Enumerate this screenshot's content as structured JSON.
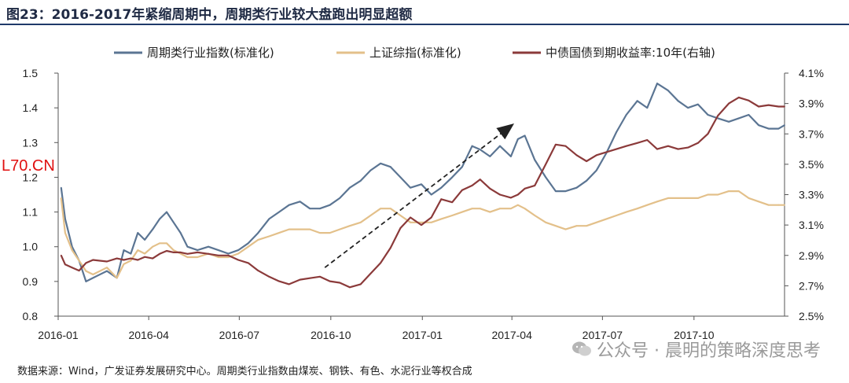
{
  "figure": {
    "title": "图23：2016-2017年紧缩周期中，周期类行业较大盘跑出明显超额",
    "source": "数据来源：Wind，广发证券发展研究中心。周期类行业指数由煤炭、钢铁、有色、水泥行业等权合成",
    "watermark": "公众号 · 晨明的策略深度思考",
    "corner_logo": "L70.CN",
    "wechat_icon": "wechat-icon"
  },
  "chart_data": {
    "type": "line",
    "x_tick_labels": [
      "2016-01",
      "2016-04",
      "2016-07",
      "2016-10",
      "2017-01",
      "2017-04",
      "2017-07",
      "2017-10"
    ],
    "x_range": [
      "2016-01",
      "2017-12-31"
    ],
    "y_left": {
      "ticks": [
        "0.8",
        "0.9",
        "1.0",
        "1.1",
        "1.2",
        "1.3",
        "1.4",
        "1.5"
      ],
      "lim": [
        0.8,
        1.5
      ]
    },
    "y_right": {
      "ticks": [
        "2.5%",
        "2.7%",
        "2.9%",
        "3.1%",
        "3.3%",
        "3.5%",
        "3.7%",
        "3.9%",
        "4.1%"
      ],
      "lim": [
        2.5,
        4.1
      ]
    },
    "grid": false,
    "legend_position": "top",
    "annotation": "dashed arrow from 2016-10 to 2017-04 showing upward trend",
    "series": [
      {
        "name": "周期类行业指数(标准化)",
        "axis": "left",
        "color": "#5b7593",
        "points": [
          [
            "2016-01-04",
            1.17
          ],
          [
            "2016-01-08",
            1.08
          ],
          [
            "2016-01-15",
            1.0
          ],
          [
            "2016-01-22",
            0.96
          ],
          [
            "2016-01-29",
            0.9
          ],
          [
            "2016-02-05",
            0.91
          ],
          [
            "2016-02-19",
            0.93
          ],
          [
            "2016-02-29",
            0.91
          ],
          [
            "2016-03-07",
            0.99
          ],
          [
            "2016-03-14",
            0.98
          ],
          [
            "2016-03-21",
            1.04
          ],
          [
            "2016-03-28",
            1.02
          ],
          [
            "2016-04-05",
            1.05
          ],
          [
            "2016-04-12",
            1.08
          ],
          [
            "2016-04-19",
            1.1
          ],
          [
            "2016-04-26",
            1.07
          ],
          [
            "2016-05-03",
            1.04
          ],
          [
            "2016-05-10",
            1.0
          ],
          [
            "2016-05-20",
            0.99
          ],
          [
            "2016-05-31",
            1.0
          ],
          [
            "2016-06-10",
            0.99
          ],
          [
            "2016-06-20",
            0.98
          ],
          [
            "2016-06-30",
            0.99
          ],
          [
            "2016-07-10",
            1.01
          ],
          [
            "2016-07-20",
            1.04
          ],
          [
            "2016-07-31",
            1.08
          ],
          [
            "2016-08-10",
            1.1
          ],
          [
            "2016-08-20",
            1.12
          ],
          [
            "2016-08-31",
            1.13
          ],
          [
            "2016-09-10",
            1.11
          ],
          [
            "2016-09-20",
            1.11
          ],
          [
            "2016-09-30",
            1.12
          ],
          [
            "2016-10-10",
            1.14
          ],
          [
            "2016-10-20",
            1.17
          ],
          [
            "2016-10-31",
            1.19
          ],
          [
            "2016-11-10",
            1.22
          ],
          [
            "2016-11-20",
            1.24
          ],
          [
            "2016-11-30",
            1.23
          ],
          [
            "2016-12-10",
            1.2
          ],
          [
            "2016-12-20",
            1.17
          ],
          [
            "2016-12-31",
            1.18
          ],
          [
            "2017-01-10",
            1.15
          ],
          [
            "2017-01-20",
            1.17
          ],
          [
            "2017-01-31",
            1.2
          ],
          [
            "2017-02-10",
            1.23
          ],
          [
            "2017-02-20",
            1.29
          ],
          [
            "2017-02-28",
            1.28
          ],
          [
            "2017-03-10",
            1.26
          ],
          [
            "2017-03-20",
            1.29
          ],
          [
            "2017-03-31",
            1.26
          ],
          [
            "2017-04-07",
            1.31
          ],
          [
            "2017-04-14",
            1.32
          ],
          [
            "2017-04-24",
            1.25
          ],
          [
            "2017-05-05",
            1.2
          ],
          [
            "2017-05-15",
            1.16
          ],
          [
            "2017-05-25",
            1.16
          ],
          [
            "2017-06-05",
            1.17
          ],
          [
            "2017-06-15",
            1.19
          ],
          [
            "2017-06-25",
            1.22
          ],
          [
            "2017-07-05",
            1.27
          ],
          [
            "2017-07-15",
            1.33
          ],
          [
            "2017-07-25",
            1.38
          ],
          [
            "2017-08-05",
            1.42
          ],
          [
            "2017-08-15",
            1.4
          ],
          [
            "2017-08-25",
            1.47
          ],
          [
            "2017-09-05",
            1.45
          ],
          [
            "2017-09-15",
            1.42
          ],
          [
            "2017-09-25",
            1.4
          ],
          [
            "2017-10-05",
            1.41
          ],
          [
            "2017-10-15",
            1.38
          ],
          [
            "2017-10-25",
            1.37
          ],
          [
            "2017-11-05",
            1.36
          ],
          [
            "2017-11-15",
            1.37
          ],
          [
            "2017-11-25",
            1.38
          ],
          [
            "2017-12-05",
            1.35
          ],
          [
            "2017-12-15",
            1.34
          ],
          [
            "2017-12-25",
            1.34
          ],
          [
            "2017-12-31",
            1.35
          ]
        ]
      },
      {
        "name": "上证综指(标准化)",
        "axis": "left",
        "color": "#e3c08a",
        "points": [
          [
            "2016-01-04",
            1.14
          ],
          [
            "2016-01-08",
            1.04
          ],
          [
            "2016-01-15",
            0.99
          ],
          [
            "2016-01-22",
            0.96
          ],
          [
            "2016-01-29",
            0.93
          ],
          [
            "2016-02-05",
            0.92
          ],
          [
            "2016-02-19",
            0.94
          ],
          [
            "2016-02-29",
            0.91
          ],
          [
            "2016-03-07",
            0.95
          ],
          [
            "2016-03-14",
            0.96
          ],
          [
            "2016-03-21",
            0.99
          ],
          [
            "2016-03-28",
            0.98
          ],
          [
            "2016-04-05",
            1.0
          ],
          [
            "2016-04-12",
            1.01
          ],
          [
            "2016-04-19",
            1.01
          ],
          [
            "2016-04-26",
            0.99
          ],
          [
            "2016-05-03",
            0.98
          ],
          [
            "2016-05-10",
            0.97
          ],
          [
            "2016-05-20",
            0.97
          ],
          [
            "2016-05-31",
            0.98
          ],
          [
            "2016-06-10",
            0.97
          ],
          [
            "2016-06-20",
            0.97
          ],
          [
            "2016-06-30",
            0.98
          ],
          [
            "2016-07-10",
            1.0
          ],
          [
            "2016-07-20",
            1.02
          ],
          [
            "2016-07-31",
            1.03
          ],
          [
            "2016-08-10",
            1.04
          ],
          [
            "2016-08-20",
            1.05
          ],
          [
            "2016-08-31",
            1.05
          ],
          [
            "2016-09-10",
            1.05
          ],
          [
            "2016-09-20",
            1.04
          ],
          [
            "2016-09-30",
            1.04
          ],
          [
            "2016-10-10",
            1.05
          ],
          [
            "2016-10-20",
            1.06
          ],
          [
            "2016-10-31",
            1.07
          ],
          [
            "2016-11-10",
            1.09
          ],
          [
            "2016-11-20",
            1.11
          ],
          [
            "2016-11-30",
            1.11
          ],
          [
            "2016-12-10",
            1.09
          ],
          [
            "2016-12-20",
            1.07
          ],
          [
            "2016-12-31",
            1.07
          ],
          [
            "2017-01-10",
            1.07
          ],
          [
            "2017-01-20",
            1.08
          ],
          [
            "2017-01-31",
            1.09
          ],
          [
            "2017-02-10",
            1.1
          ],
          [
            "2017-02-20",
            1.11
          ],
          [
            "2017-02-28",
            1.11
          ],
          [
            "2017-03-10",
            1.1
          ],
          [
            "2017-03-20",
            1.11
          ],
          [
            "2017-03-31",
            1.11
          ],
          [
            "2017-04-07",
            1.12
          ],
          [
            "2017-04-14",
            1.11
          ],
          [
            "2017-04-24",
            1.09
          ],
          [
            "2017-05-05",
            1.07
          ],
          [
            "2017-05-15",
            1.06
          ],
          [
            "2017-05-25",
            1.05
          ],
          [
            "2017-06-05",
            1.06
          ],
          [
            "2017-06-15",
            1.06
          ],
          [
            "2017-06-25",
            1.07
          ],
          [
            "2017-07-05",
            1.08
          ],
          [
            "2017-07-15",
            1.09
          ],
          [
            "2017-07-25",
            1.1
          ],
          [
            "2017-08-05",
            1.11
          ],
          [
            "2017-08-15",
            1.12
          ],
          [
            "2017-08-25",
            1.13
          ],
          [
            "2017-09-05",
            1.14
          ],
          [
            "2017-09-15",
            1.14
          ],
          [
            "2017-09-25",
            1.14
          ],
          [
            "2017-10-05",
            1.14
          ],
          [
            "2017-10-15",
            1.15
          ],
          [
            "2017-10-25",
            1.15
          ],
          [
            "2017-11-05",
            1.16
          ],
          [
            "2017-11-15",
            1.16
          ],
          [
            "2017-11-25",
            1.14
          ],
          [
            "2017-12-05",
            1.13
          ],
          [
            "2017-12-15",
            1.12
          ],
          [
            "2017-12-25",
            1.12
          ],
          [
            "2017-12-31",
            1.12
          ]
        ]
      },
      {
        "name": "中债国债到期收益率:10年(右轴)",
        "axis": "right",
        "color": "#8b3a3a",
        "points": [
          [
            "2016-01-04",
            2.9
          ],
          [
            "2016-01-08",
            2.84
          ],
          [
            "2016-01-15",
            2.82
          ],
          [
            "2016-01-22",
            2.8
          ],
          [
            "2016-01-29",
            2.85
          ],
          [
            "2016-02-05",
            2.87
          ],
          [
            "2016-02-19",
            2.86
          ],
          [
            "2016-02-29",
            2.88
          ],
          [
            "2016-03-07",
            2.87
          ],
          [
            "2016-03-14",
            2.88
          ],
          [
            "2016-03-21",
            2.87
          ],
          [
            "2016-03-28",
            2.89
          ],
          [
            "2016-04-05",
            2.88
          ],
          [
            "2016-04-12",
            2.91
          ],
          [
            "2016-04-19",
            2.93
          ],
          [
            "2016-04-26",
            2.92
          ],
          [
            "2016-05-03",
            2.92
          ],
          [
            "2016-05-10",
            2.91
          ],
          [
            "2016-05-20",
            2.92
          ],
          [
            "2016-05-31",
            2.91
          ],
          [
            "2016-06-10",
            2.9
          ],
          [
            "2016-06-20",
            2.9
          ],
          [
            "2016-06-30",
            2.87
          ],
          [
            "2016-07-10",
            2.85
          ],
          [
            "2016-07-20",
            2.8
          ],
          [
            "2016-07-31",
            2.76
          ],
          [
            "2016-08-10",
            2.73
          ],
          [
            "2016-08-20",
            2.71
          ],
          [
            "2016-08-31",
            2.74
          ],
          [
            "2016-09-10",
            2.75
          ],
          [
            "2016-09-20",
            2.76
          ],
          [
            "2016-09-30",
            2.73
          ],
          [
            "2016-10-10",
            2.72
          ],
          [
            "2016-10-20",
            2.69
          ],
          [
            "2016-10-31",
            2.71
          ],
          [
            "2016-11-10",
            2.78
          ],
          [
            "2016-11-20",
            2.85
          ],
          [
            "2016-11-30",
            2.95
          ],
          [
            "2016-12-10",
            3.08
          ],
          [
            "2016-12-20",
            3.15
          ],
          [
            "2016-12-31",
            3.1
          ],
          [
            "2017-01-10",
            3.15
          ],
          [
            "2017-01-20",
            3.27
          ],
          [
            "2017-01-31",
            3.25
          ],
          [
            "2017-02-10",
            3.33
          ],
          [
            "2017-02-20",
            3.36
          ],
          [
            "2017-02-28",
            3.4
          ],
          [
            "2017-03-10",
            3.34
          ],
          [
            "2017-03-20",
            3.3
          ],
          [
            "2017-03-31",
            3.28
          ],
          [
            "2017-04-07",
            3.3
          ],
          [
            "2017-04-14",
            3.34
          ],
          [
            "2017-04-24",
            3.36
          ],
          [
            "2017-05-05",
            3.5
          ],
          [
            "2017-05-15",
            3.63
          ],
          [
            "2017-05-25",
            3.62
          ],
          [
            "2017-06-05",
            3.56
          ],
          [
            "2017-06-15",
            3.52
          ],
          [
            "2017-06-25",
            3.56
          ],
          [
            "2017-07-05",
            3.58
          ],
          [
            "2017-07-15",
            3.6
          ],
          [
            "2017-07-25",
            3.62
          ],
          [
            "2017-08-05",
            3.64
          ],
          [
            "2017-08-15",
            3.66
          ],
          [
            "2017-08-25",
            3.6
          ],
          [
            "2017-09-05",
            3.62
          ],
          [
            "2017-09-15",
            3.6
          ],
          [
            "2017-09-25",
            3.61
          ],
          [
            "2017-10-05",
            3.64
          ],
          [
            "2017-10-15",
            3.7
          ],
          [
            "2017-10-25",
            3.82
          ],
          [
            "2017-11-05",
            3.9
          ],
          [
            "2017-11-15",
            3.94
          ],
          [
            "2017-11-25",
            3.92
          ],
          [
            "2017-12-05",
            3.88
          ],
          [
            "2017-12-15",
            3.89
          ],
          [
            "2017-12-25",
            3.88
          ],
          [
            "2017-12-31",
            3.88
          ]
        ]
      }
    ]
  }
}
